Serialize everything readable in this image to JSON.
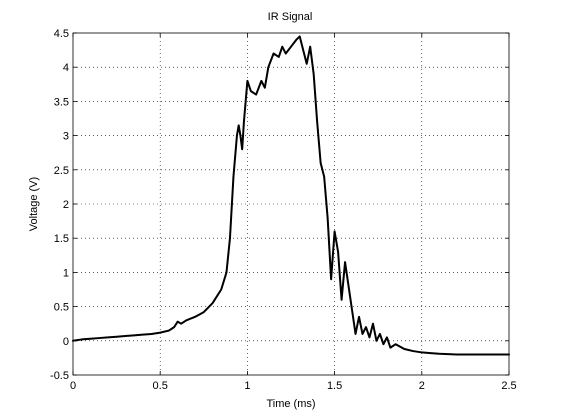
{
  "chart_data": {
    "type": "line",
    "title": "IR Signal",
    "xlabel": "Time (ms)",
    "ylabel": "Voltage (V)",
    "xlim": [
      0,
      2.5
    ],
    "ylim": [
      -0.5,
      4.5
    ],
    "xticks": [
      0,
      0.5,
      1,
      1.5,
      2,
      2.5
    ],
    "yticks": [
      -0.5,
      0,
      0.5,
      1,
      1.5,
      2,
      2.5,
      3,
      3.5,
      4,
      4.5
    ],
    "xtick_labels": [
      "0",
      "0.5",
      "1",
      "1.5",
      "2",
      "2.5"
    ],
    "ytick_labels": [
      "-0.5",
      "0",
      "0.5",
      "1",
      "1.5",
      "2",
      "2.5",
      "3",
      "3.5",
      "4",
      "4.5"
    ],
    "grid": true,
    "series": [
      {
        "color": "#000000",
        "x": [
          0,
          0.05,
          0.1,
          0.15,
          0.2,
          0.25,
          0.3,
          0.35,
          0.4,
          0.45,
          0.5,
          0.55,
          0.58,
          0.6,
          0.62,
          0.65,
          0.7,
          0.75,
          0.8,
          0.85,
          0.88,
          0.9,
          0.92,
          0.94,
          0.95,
          0.96,
          0.97,
          0.98,
          1.0,
          1.02,
          1.05,
          1.08,
          1.1,
          1.12,
          1.15,
          1.18,
          1.2,
          1.22,
          1.25,
          1.28,
          1.3,
          1.32,
          1.34,
          1.36,
          1.38,
          1.4,
          1.42,
          1.44,
          1.46,
          1.48,
          1.5,
          1.52,
          1.54,
          1.56,
          1.58,
          1.6,
          1.62,
          1.64,
          1.66,
          1.68,
          1.7,
          1.72,
          1.74,
          1.76,
          1.78,
          1.8,
          1.82,
          1.85,
          1.9,
          1.95,
          2.0,
          2.05,
          2.1,
          2.2,
          2.3,
          2.4,
          2.5
        ],
        "values": [
          0.0,
          0.02,
          0.03,
          0.04,
          0.05,
          0.06,
          0.07,
          0.08,
          0.09,
          0.1,
          0.12,
          0.15,
          0.2,
          0.28,
          0.25,
          0.3,
          0.35,
          0.42,
          0.55,
          0.75,
          1.0,
          1.5,
          2.4,
          3.0,
          3.15,
          3.0,
          2.8,
          3.2,
          3.8,
          3.65,
          3.6,
          3.8,
          3.7,
          4.0,
          4.2,
          4.15,
          4.3,
          4.2,
          4.3,
          4.4,
          4.45,
          4.25,
          4.05,
          4.3,
          3.9,
          3.2,
          2.6,
          2.4,
          1.8,
          0.9,
          1.6,
          1.3,
          0.6,
          1.15,
          0.8,
          0.45,
          0.1,
          0.35,
          0.1,
          0.2,
          0.05,
          0.25,
          0.0,
          0.1,
          -0.05,
          0.05,
          -0.1,
          -0.05,
          -0.12,
          -0.15,
          -0.17,
          -0.18,
          -0.19,
          -0.2,
          -0.2,
          -0.2,
          -0.2
        ]
      }
    ]
  }
}
